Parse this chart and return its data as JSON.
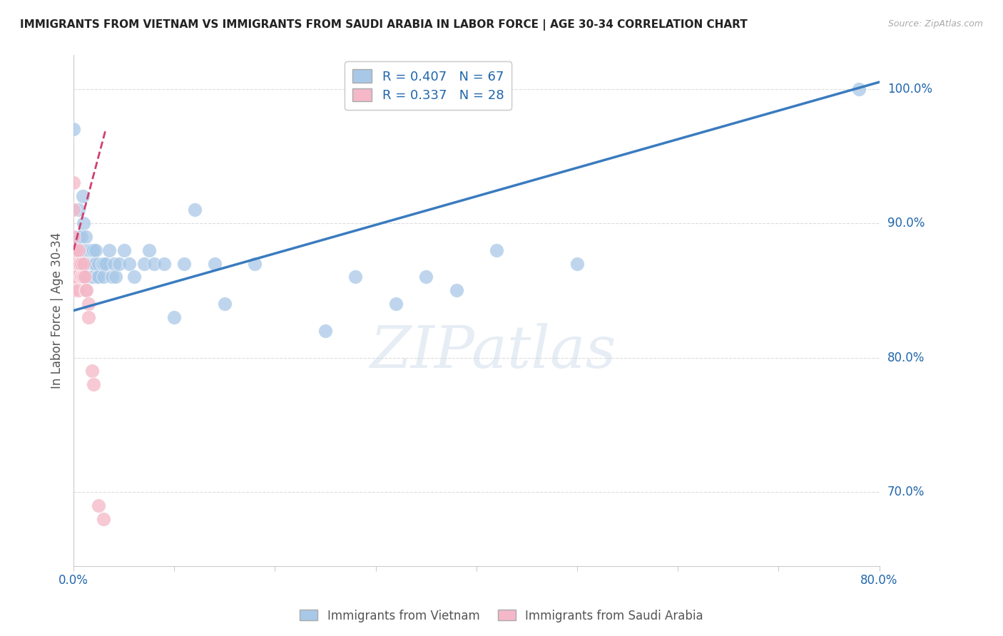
{
  "title": "IMMIGRANTS FROM VIETNAM VS IMMIGRANTS FROM SAUDI ARABIA IN LABOR FORCE | AGE 30-34 CORRELATION CHART",
  "source": "Source: ZipAtlas.com",
  "ylabel_label": "In Labor Force | Age 30-34",
  "right_yticks": [
    "100.0%",
    "90.0%",
    "80.0%",
    "70.0%"
  ],
  "right_ytick_vals": [
    1.0,
    0.9,
    0.8,
    0.7
  ],
  "legend1_text": "R = 0.407   N = 67",
  "legend2_text": "R = 0.337   N = 28",
  "legend_bottom": [
    "Immigrants from Vietnam",
    "Immigrants from Saudi Arabia"
  ],
  "blue_color": "#a8c8e8",
  "pink_color": "#f4b8c8",
  "blue_line_color": "#3a7bbf",
  "pink_line_color": "#d04070",
  "watermark": "ZIPatlas",
  "xlim": [
    0.0,
    0.8
  ],
  "ylim": [
    0.645,
    1.025
  ],
  "xtick_positions": [
    0.0,
    0.8
  ],
  "xtick_labels": [
    "0.0%",
    "80.0%"
  ],
  "blue_scatter_x": [
    0.0,
    0.0,
    0.005,
    0.005,
    0.005,
    0.008,
    0.008,
    0.009,
    0.009,
    0.01,
    0.01,
    0.01,
    0.012,
    0.012,
    0.012,
    0.013,
    0.014,
    0.014,
    0.015,
    0.015,
    0.015,
    0.016,
    0.016,
    0.017,
    0.018,
    0.018,
    0.018,
    0.019,
    0.02,
    0.02,
    0.02,
    0.021,
    0.022,
    0.022,
    0.023,
    0.025,
    0.025,
    0.028,
    0.03,
    0.03,
    0.032,
    0.035,
    0.038,
    0.04,
    0.042,
    0.045,
    0.05,
    0.055,
    0.06,
    0.07,
    0.075,
    0.08,
    0.09,
    0.1,
    0.11,
    0.12,
    0.14,
    0.15,
    0.18,
    0.25,
    0.28,
    0.32,
    0.35,
    0.38,
    0.42,
    0.5,
    0.78
  ],
  "blue_scatter_y": [
    0.97,
    0.88,
    0.91,
    0.89,
    0.88,
    0.89,
    0.87,
    0.92,
    0.88,
    0.9,
    0.88,
    0.87,
    0.89,
    0.88,
    0.87,
    0.88,
    0.87,
    0.86,
    0.88,
    0.87,
    0.86,
    0.88,
    0.87,
    0.86,
    0.88,
    0.87,
    0.86,
    0.87,
    0.88,
    0.87,
    0.86,
    0.87,
    0.88,
    0.87,
    0.86,
    0.87,
    0.86,
    0.87,
    0.87,
    0.86,
    0.87,
    0.88,
    0.86,
    0.87,
    0.86,
    0.87,
    0.88,
    0.87,
    0.86,
    0.87,
    0.88,
    0.87,
    0.87,
    0.83,
    0.87,
    0.91,
    0.87,
    0.84,
    0.87,
    0.82,
    0.86,
    0.84,
    0.86,
    0.85,
    0.88,
    0.87,
    1.0
  ],
  "pink_scatter_x": [
    0.0,
    0.0,
    0.0,
    0.0,
    0.0,
    0.0,
    0.0,
    0.003,
    0.003,
    0.005,
    0.005,
    0.005,
    0.006,
    0.007,
    0.008,
    0.008,
    0.009,
    0.01,
    0.01,
    0.011,
    0.012,
    0.013,
    0.015,
    0.015,
    0.018,
    0.02,
    0.025,
    0.03
  ],
  "pink_scatter_y": [
    0.93,
    0.91,
    0.89,
    0.88,
    0.87,
    0.86,
    0.85,
    0.88,
    0.86,
    0.88,
    0.87,
    0.85,
    0.87,
    0.86,
    0.87,
    0.86,
    0.86,
    0.87,
    0.86,
    0.86,
    0.85,
    0.85,
    0.84,
    0.83,
    0.79,
    0.78,
    0.69,
    0.68
  ],
  "blue_trend_x": [
    0.0,
    0.8
  ],
  "blue_trend_y": [
    0.835,
    1.005
  ],
  "pink_trend_x": [
    0.0,
    0.032
  ],
  "pink_trend_y": [
    0.88,
    0.97
  ]
}
